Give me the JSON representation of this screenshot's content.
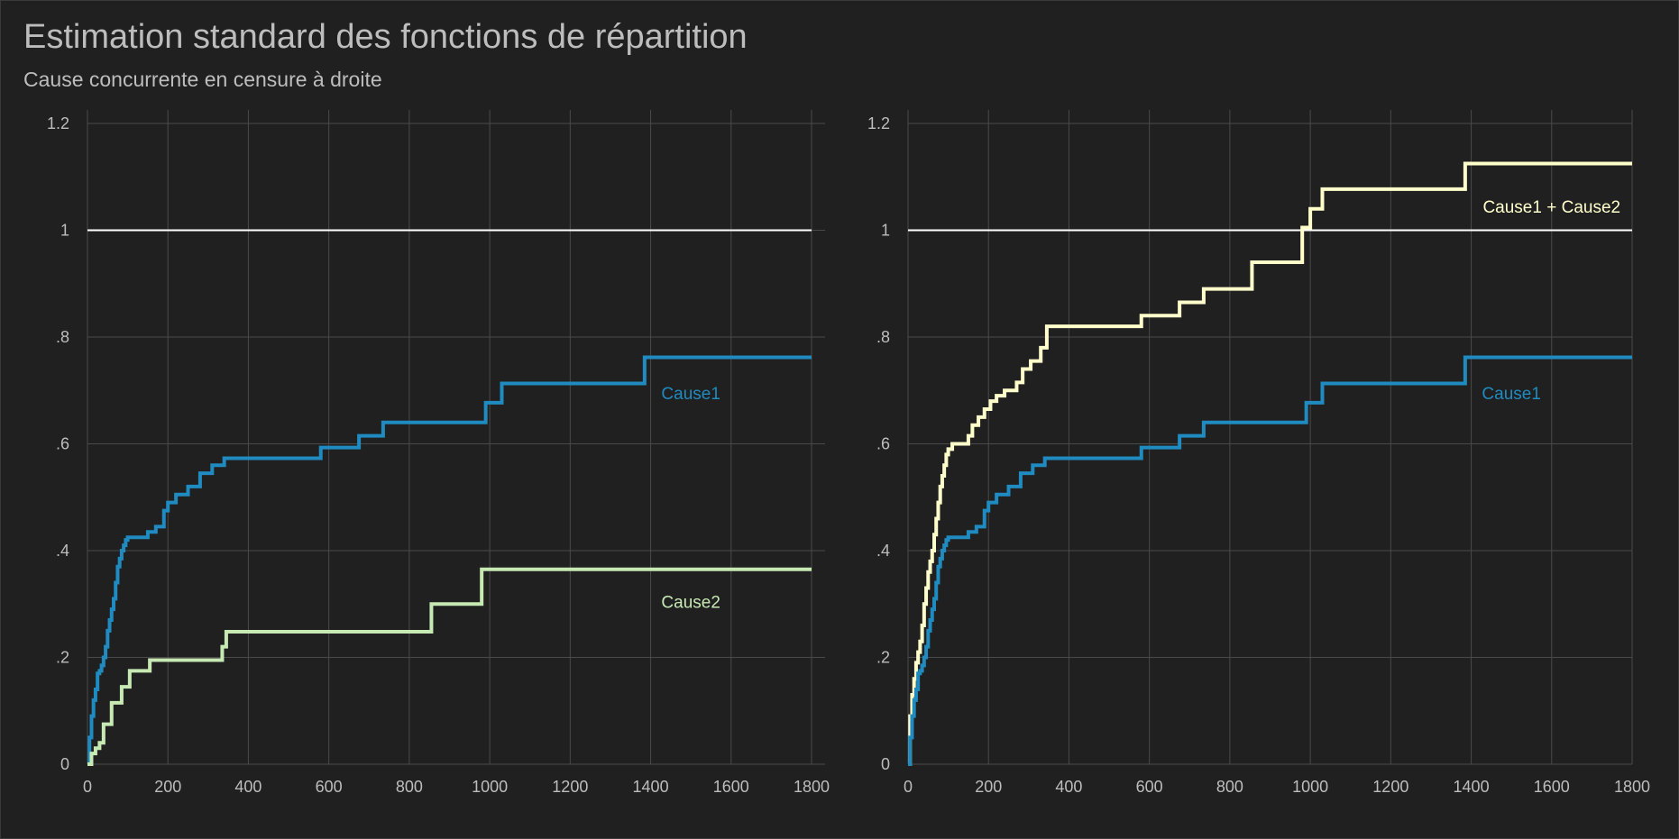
{
  "title": "Estimation standard des fonctions de répartition",
  "subtitle": "Cause concurrente en censure à droite",
  "colors": {
    "background": "#202020",
    "grid": "#4a4a4a",
    "text": "#bdbdbd",
    "cause1": "#1f8bc0",
    "cause2": "#c7e9b4",
    "sum": "#ffffcc",
    "reference": "#ffffff"
  },
  "chart_data": [
    {
      "type": "line",
      "step": true,
      "xlim": [
        0,
        1800
      ],
      "ylim": [
        0,
        1.2
      ],
      "x_ticks": [
        0,
        200,
        400,
        600,
        800,
        1000,
        1200,
        1400,
        1600,
        1800
      ],
      "y_ticks": [
        0,
        0.2,
        0.4,
        0.6,
        0.8,
        1,
        1.2
      ],
      "y_tick_labels": [
        "0",
        ".2",
        ".4",
        ".6",
        ".8",
        "1",
        "1.2"
      ],
      "grid": true,
      "reference_line": 1,
      "annotations": [
        {
          "text": "Cause1",
          "x": 1500,
          "y": 0.695,
          "series": "Cause1"
        },
        {
          "text": "Cause2",
          "x": 1500,
          "y": 0.305,
          "series": "Cause2"
        }
      ],
      "series": [
        {
          "name": "Cause1",
          "x": [
            0,
            5,
            10,
            15,
            20,
            25,
            30,
            35,
            40,
            45,
            50,
            55,
            60,
            65,
            70,
            75,
            80,
            85,
            90,
            95,
            100,
            150,
            170,
            190,
            200,
            220,
            250,
            280,
            310,
            340,
            580,
            675,
            735,
            990,
            1030,
            1385,
            1800
          ],
          "y": [
            0,
            0.05,
            0.09,
            0.12,
            0.14,
            0.17,
            0.175,
            0.185,
            0.2,
            0.22,
            0.25,
            0.27,
            0.29,
            0.31,
            0.34,
            0.37,
            0.385,
            0.4,
            0.41,
            0.42,
            0.425,
            0.435,
            0.445,
            0.475,
            0.49,
            0.505,
            0.52,
            0.545,
            0.56,
            0.573,
            0.593,
            0.615,
            0.64,
            0.677,
            0.713,
            0.762,
            0.762
          ]
        },
        {
          "name": "Cause2",
          "x": [
            0,
            10,
            20,
            30,
            40,
            60,
            85,
            105,
            155,
            335,
            345,
            855,
            980,
            1800
          ],
          "y": [
            0,
            0.02,
            0.03,
            0.04,
            0.075,
            0.115,
            0.145,
            0.175,
            0.195,
            0.22,
            0.248,
            0.3,
            0.365,
            0.365
          ]
        }
      ]
    },
    {
      "type": "line",
      "step": true,
      "xlim": [
        0,
        1800
      ],
      "ylim": [
        0,
        1.2
      ],
      "x_ticks": [
        0,
        200,
        400,
        600,
        800,
        1000,
        1200,
        1400,
        1600,
        1800
      ],
      "y_ticks": [
        0,
        0.2,
        0.4,
        0.6,
        0.8,
        1,
        1.2
      ],
      "y_tick_labels": [
        "0",
        ".2",
        ".4",
        ".6",
        ".8",
        "1",
        "1.2"
      ],
      "grid": true,
      "reference_line": 1,
      "annotations": [
        {
          "text": "Cause1 + Cause2",
          "x": 1600,
          "y": 1.045,
          "series": "Cause1 + Cause2"
        },
        {
          "text": "Cause1",
          "x": 1500,
          "y": 0.695,
          "series": "Cause1"
        }
      ],
      "series": [
        {
          "name": "Cause1 + Cause2",
          "x": [
            0,
            5,
            10,
            15,
            20,
            25,
            30,
            35,
            40,
            45,
            50,
            55,
            60,
            65,
            70,
            75,
            80,
            85,
            90,
            95,
            100,
            110,
            150,
            160,
            175,
            190,
            205,
            220,
            240,
            270,
            285,
            305,
            330,
            345,
            580,
            675,
            735,
            855,
            980,
            1000,
            1030,
            1385,
            1800
          ],
          "y": [
            0,
            0.09,
            0.13,
            0.16,
            0.19,
            0.21,
            0.23,
            0.26,
            0.3,
            0.33,
            0.36,
            0.38,
            0.4,
            0.43,
            0.46,
            0.49,
            0.52,
            0.54,
            0.56,
            0.58,
            0.59,
            0.6,
            0.615,
            0.635,
            0.65,
            0.665,
            0.68,
            0.69,
            0.7,
            0.715,
            0.74,
            0.755,
            0.78,
            0.82,
            0.84,
            0.865,
            0.89,
            0.94,
            1.005,
            1.04,
            1.077,
            1.125,
            1.125
          ]
        },
        {
          "name": "Cause1",
          "x": [
            0,
            5,
            10,
            15,
            20,
            25,
            30,
            35,
            40,
            45,
            50,
            55,
            60,
            65,
            70,
            75,
            80,
            85,
            90,
            95,
            100,
            150,
            170,
            190,
            200,
            220,
            250,
            280,
            310,
            340,
            580,
            675,
            735,
            990,
            1030,
            1385,
            1800
          ],
          "y": [
            0,
            0.05,
            0.09,
            0.12,
            0.14,
            0.17,
            0.175,
            0.185,
            0.2,
            0.22,
            0.25,
            0.27,
            0.29,
            0.31,
            0.34,
            0.37,
            0.385,
            0.4,
            0.41,
            0.42,
            0.425,
            0.435,
            0.445,
            0.475,
            0.49,
            0.505,
            0.52,
            0.545,
            0.56,
            0.573,
            0.593,
            0.615,
            0.64,
            0.677,
            0.713,
            0.762,
            0.762
          ]
        }
      ]
    }
  ]
}
